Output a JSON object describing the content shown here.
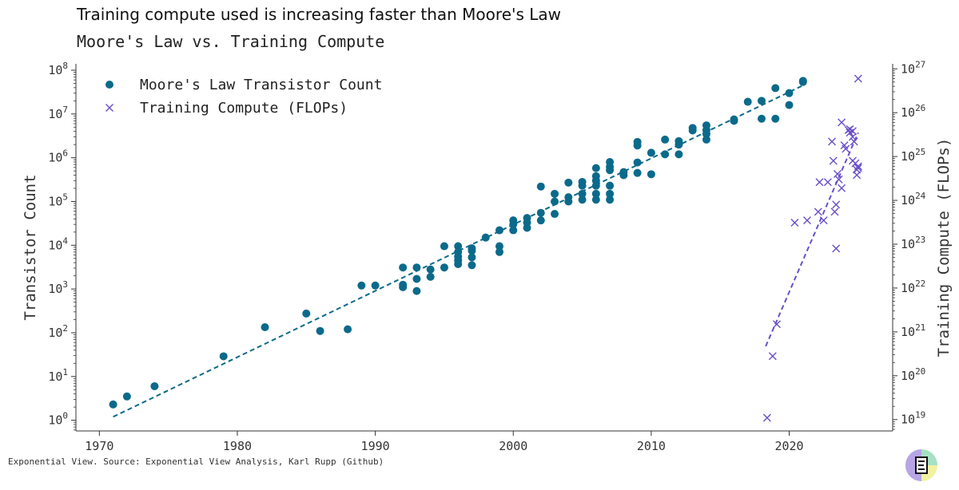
{
  "page": {
    "headline": "Training compute used is increasing faster than Moore's Law",
    "source": "Exponential View. Source: Exponential View Analysis, Karl Rupp (Github)",
    "logo_icon": "exponential-view-logo"
  },
  "colors": {
    "moore": "#0b6a8b",
    "compute": "#6a4fc9",
    "axis": "#333333"
  },
  "chart_data": {
    "type": "scatter",
    "title": "Moore's Law vs. Training Compute",
    "xlabel": "",
    "ylabel": "Transistor Count",
    "y2label": "Training Compute (FLOPs)",
    "x_ticks": [
      1970,
      1980,
      1990,
      2000,
      2010,
      2020
    ],
    "xlim": [
      1968.3,
      2027.5
    ],
    "y_scale": "log",
    "ylim": [
      0.57,
      140000000
    ],
    "y_ticks": [
      1,
      10,
      100,
      1000,
      10000,
      100000,
      1000000,
      10000000,
      100000000
    ],
    "y_tick_labels": [
      {
        "base": "10",
        "exp": "0"
      },
      {
        "base": "10",
        "exp": "1"
      },
      {
        "base": "10",
        "exp": "2"
      },
      {
        "base": "10",
        "exp": "3"
      },
      {
        "base": "10",
        "exp": "4"
      },
      {
        "base": "10",
        "exp": "5"
      },
      {
        "base": "10",
        "exp": "6"
      },
      {
        "base": "10",
        "exp": "7"
      },
      {
        "base": "10",
        "exp": "8"
      }
    ],
    "y2_scale": "log",
    "y2lim": [
      5.5e+18,
      1.3e+27
    ],
    "y2_ticks": [
      1e+19,
      1e+20,
      1e+21,
      1e+22,
      1e+23,
      1e+24,
      1e+25,
      1e+26,
      1e+27
    ],
    "y2_tick_labels": [
      {
        "base": "10",
        "exp": "19"
      },
      {
        "base": "10",
        "exp": "20"
      },
      {
        "base": "10",
        "exp": "21"
      },
      {
        "base": "10",
        "exp": "22"
      },
      {
        "base": "10",
        "exp": "23"
      },
      {
        "base": "10",
        "exp": "24"
      },
      {
        "base": "10",
        "exp": "25"
      },
      {
        "base": "10",
        "exp": "26"
      },
      {
        "base": "10",
        "exp": "27"
      }
    ],
    "grid": false,
    "legend_position": "top-left",
    "series": [
      {
        "name": "Moore's Law Transistor Count",
        "marker": "circle",
        "axis": "left",
        "color": "#0b6a8b",
        "points": [
          [
            1971,
            2.3
          ],
          [
            1972,
            3.5
          ],
          [
            1974,
            6
          ],
          [
            1979,
            29
          ],
          [
            1982,
            134
          ],
          [
            1985,
            275
          ],
          [
            1986,
            110
          ],
          [
            1988,
            120
          ],
          [
            1989,
            1200
          ],
          [
            1990,
            1200
          ],
          [
            1992,
            3100
          ],
          [
            1992,
            1100
          ],
          [
            1992,
            1250
          ],
          [
            1993,
            3100
          ],
          [
            1993,
            1700
          ],
          [
            1993,
            900
          ],
          [
            1994,
            2800
          ],
          [
            1994,
            1900
          ],
          [
            1995,
            3100
          ],
          [
            1995,
            9500
          ],
          [
            1996,
            9500
          ],
          [
            1996,
            7000
          ],
          [
            1996,
            5500
          ],
          [
            1996,
            4500
          ],
          [
            1996,
            3700
          ],
          [
            1997,
            8500
          ],
          [
            1997,
            7500
          ],
          [
            1997,
            5300
          ],
          [
            1997,
            3500
          ],
          [
            1998,
            15000
          ],
          [
            1999,
            22000
          ],
          [
            1999,
            9500
          ],
          [
            1999,
            7000
          ],
          [
            2000,
            37000
          ],
          [
            2000,
            30000
          ],
          [
            2000,
            22000
          ],
          [
            2001,
            42000
          ],
          [
            2001,
            33000
          ],
          [
            2001,
            25000
          ],
          [
            2002,
            220000
          ],
          [
            2002,
            55000
          ],
          [
            2002,
            37000
          ],
          [
            2003,
            150000
          ],
          [
            2003,
            100000
          ],
          [
            2003,
            52000
          ],
          [
            2004,
            270000
          ],
          [
            2004,
            125000
          ],
          [
            2004,
            100000
          ],
          [
            2005,
            280000
          ],
          [
            2005,
            230000
          ],
          [
            2005,
            150000
          ],
          [
            2005,
            110000
          ],
          [
            2006,
            580000
          ],
          [
            2006,
            380000
          ],
          [
            2006,
            300000
          ],
          [
            2006,
            230000
          ],
          [
            2006,
            150000
          ],
          [
            2006,
            110000
          ],
          [
            2007,
            800000
          ],
          [
            2007,
            620000
          ],
          [
            2007,
            520000
          ],
          [
            2007,
            230000
          ],
          [
            2007,
            150000
          ],
          [
            2007,
            110000
          ],
          [
            2008,
            470000
          ],
          [
            2008,
            400000
          ],
          [
            2009,
            2300000
          ],
          [
            2009,
            1900000
          ],
          [
            2009,
            780000
          ],
          [
            2009,
            450000
          ],
          [
            2010,
            1300000
          ],
          [
            2010,
            420000
          ],
          [
            2011,
            2600000
          ],
          [
            2011,
            1200000
          ],
          [
            2012,
            2400000
          ],
          [
            2012,
            2000000
          ],
          [
            2012,
            1200000
          ],
          [
            2013,
            4800000
          ],
          [
            2013,
            4200000
          ],
          [
            2014,
            5500000
          ],
          [
            2014,
            4300000
          ],
          [
            2014,
            3500000
          ],
          [
            2014,
            2600000
          ],
          [
            2016,
            7500000
          ],
          [
            2016,
            7000000
          ],
          [
            2017,
            19000000
          ],
          [
            2018,
            20000000
          ],
          [
            2018,
            7800000
          ],
          [
            2019,
            39000000
          ],
          [
            2019,
            7800000
          ],
          [
            2020,
            30000000
          ],
          [
            2020,
            16000000
          ],
          [
            2021,
            57000000
          ],
          [
            2021,
            54000000
          ]
        ]
      },
      {
        "name": "Training Compute (FLOPs)",
        "marker": "x",
        "axis": "right",
        "color": "#6a4fc9",
        "points": [
          [
            2018.4,
            1.1e+19
          ],
          [
            2018.8,
            2.8e+20
          ],
          [
            2019.1,
            1.5e+21
          ],
          [
            2020.4,
            3.1e+23
          ],
          [
            2021.3,
            3.5e+23
          ],
          [
            2022.1,
            5.5e+23
          ],
          [
            2022.2,
            2.6e+24
          ],
          [
            2022.5,
            3.5e+23
          ],
          [
            2022.8,
            2.6e+24
          ],
          [
            2023.1,
            2.2e+25
          ],
          [
            2023.2,
            8e+24
          ],
          [
            2023.3,
            5.5e+23
          ],
          [
            2023.4,
            8e+23
          ],
          [
            2023.4,
            8e+22
          ],
          [
            2023.5,
            4e+24
          ],
          [
            2023.6,
            3e+24
          ],
          [
            2023.8,
            1.9e+24
          ],
          [
            2023.8,
            6e+25
          ],
          [
            2024.0,
            1.8e+25
          ],
          [
            2024.1,
            1.5e+25
          ],
          [
            2024.3,
            4e+25
          ],
          [
            2024.4,
            4.2e+25
          ],
          [
            2024.4,
            3.5e+25
          ],
          [
            2024.6,
            3.8e+25
          ],
          [
            2024.6,
            2.8e+25
          ],
          [
            2024.6,
            8e+24
          ],
          [
            2024.7,
            2.2e+25
          ],
          [
            2024.8,
            7e+24
          ],
          [
            2024.9,
            5e+24
          ],
          [
            2024.9,
            3.8e+24
          ],
          [
            2025.0,
            6e+24
          ],
          [
            2025.0,
            5.5e+24
          ],
          [
            2025.0,
            6e+26
          ]
        ]
      }
    ],
    "trendlines": [
      {
        "series": "Moore's Law Transistor Count",
        "style": "dashed",
        "from": [
          1971,
          1.2
        ],
        "to": [
          2021,
          45000000
        ]
      },
      {
        "series": "Training Compute (FLOPs)",
        "style": "dashed",
        "from": [
          2018.3,
          4.7e+20
        ],
        "to": [
          2025.0,
          3.5e+25
        ]
      }
    ]
  }
}
